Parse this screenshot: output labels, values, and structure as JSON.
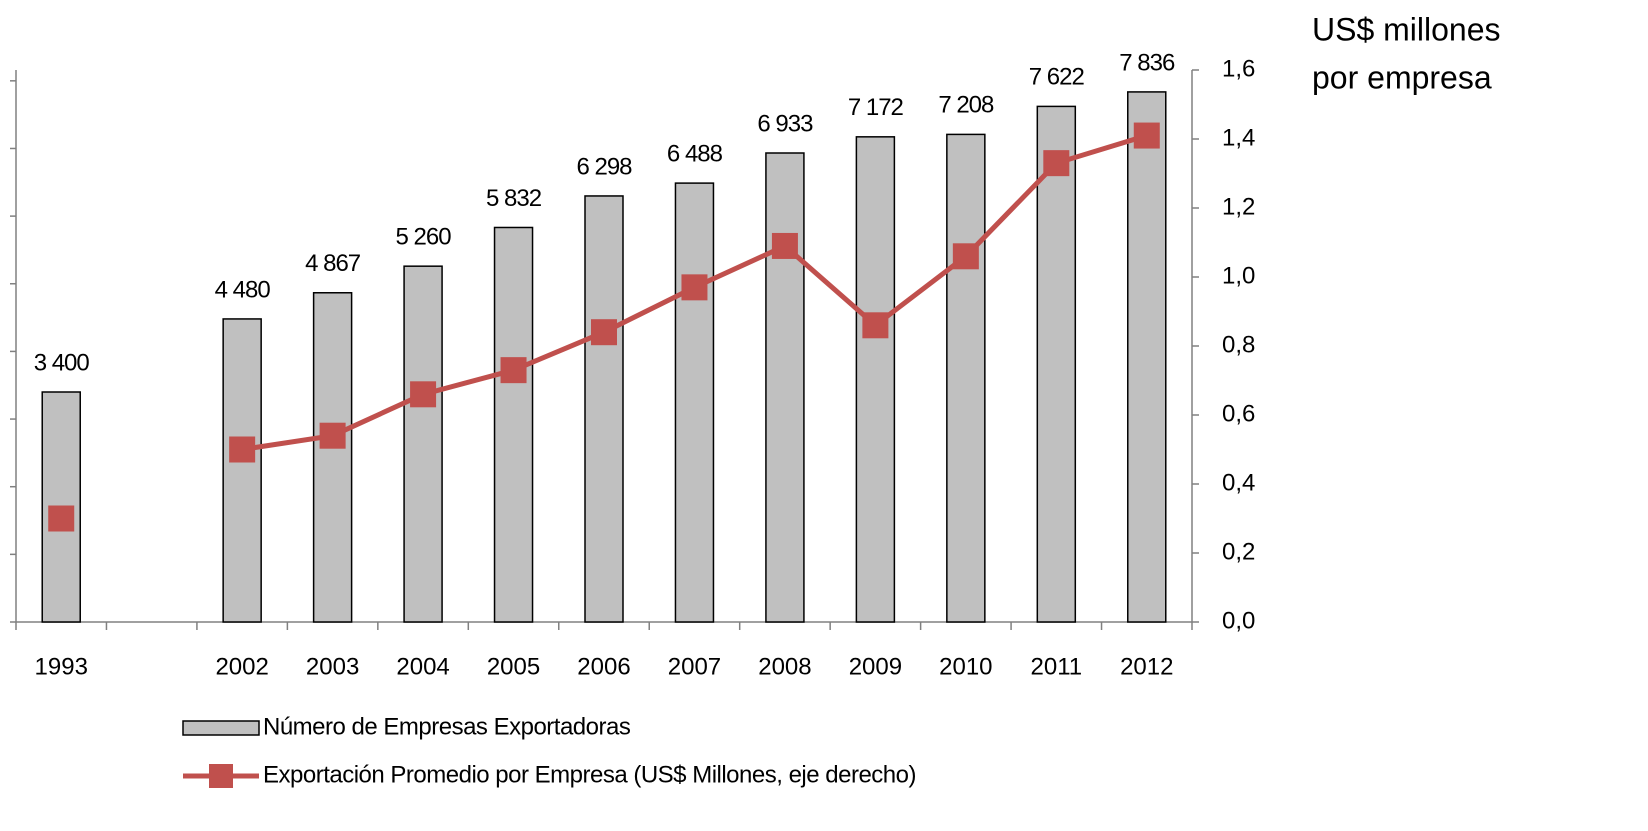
{
  "chart_data": {
    "type": "bar-line",
    "y2label": [
      "US$ millones",
      "por empresa"
    ],
    "categories": [
      "1993",
      null,
      "2002",
      "2003",
      "2004",
      "2005",
      "2006",
      "2007",
      "2008",
      "2009",
      "2010",
      "2011",
      "2012"
    ],
    "series": [
      {
        "name": "Número de Empresas Exportadoras",
        "type": "bar",
        "color": "#c0c0c0",
        "values": [
          3400,
          null,
          4480,
          4867,
          5260,
          5832,
          6298,
          6488,
          6933,
          7172,
          7208,
          7622,
          7836
        ],
        "value_labels": [
          "3 400",
          null,
          "4 480",
          "4 867",
          "5 260",
          "5 832",
          "6 298",
          "6 488",
          "6 933",
          "7 172",
          "7 208",
          "7 622",
          "7 836"
        ]
      },
      {
        "name": "Exportación Promedio por Empresa (US$ Millones, eje derecho)",
        "type": "line",
        "axis": "y2",
        "color": "#c0504d",
        "values": [
          0.3,
          null,
          0.5,
          0.54,
          0.66,
          0.73,
          0.84,
          0.97,
          1.09,
          0.86,
          1.06,
          1.33,
          1.41
        ]
      }
    ],
    "ylim": [
      0,
      8160
    ],
    "yticks": [
      0,
      1000,
      2000,
      3000,
      4000,
      5000,
      6000,
      7000,
      8000
    ],
    "y2lim": [
      0,
      1.6
    ],
    "y2ticks": [
      {
        "value": 0,
        "label": "0,0"
      },
      {
        "value": 0.2,
        "label": "0,2"
      },
      {
        "value": 0.4,
        "label": "0,4"
      },
      {
        "value": 0.6,
        "label": "0,6"
      },
      {
        "value": 0.8,
        "label": "0,8"
      },
      {
        "value": 1.0,
        "label": "1,0"
      },
      {
        "value": 1.2,
        "label": "1,2"
      },
      {
        "value": 1.4,
        "label": "1,4"
      },
      {
        "value": 1.6,
        "label": "1,6"
      }
    ],
    "legend": "bottom"
  }
}
